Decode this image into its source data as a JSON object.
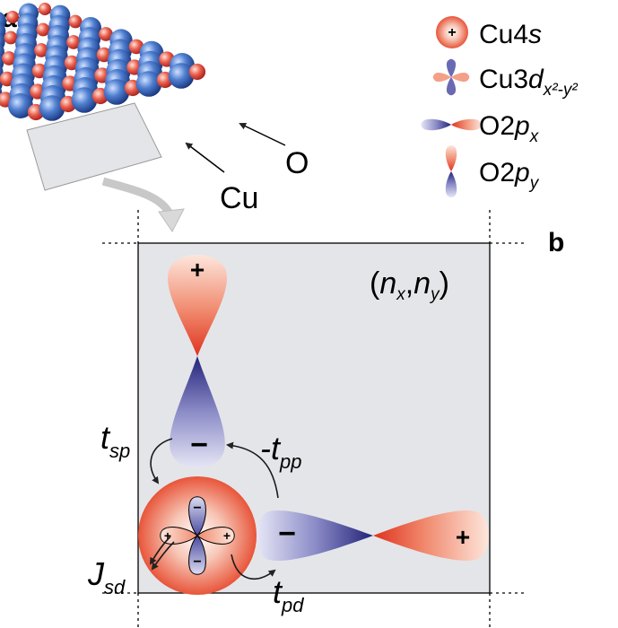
{
  "panels": {
    "a": "a",
    "b": "b"
  },
  "lattice_labels": {
    "cu": "Cu",
    "o": "O"
  },
  "legend": [
    {
      "text": "Cu4",
      "ital": "s",
      "sub": ""
    },
    {
      "text": "Cu3",
      "ital": "d",
      "sub": "x²-y²"
    },
    {
      "text": "O2",
      "ital": "p",
      "sub": "x"
    },
    {
      "text": "O2",
      "ital": "p",
      "sub": "y"
    }
  ],
  "cell_label": {
    "open": "(",
    "nx": "n",
    "nx_sub": "x",
    "comma": ",",
    "ny": "n",
    "ny_sub": "y",
    "close": ")"
  },
  "hoppings": {
    "tsp": {
      "main": "t",
      "sub": "sp"
    },
    "tpp": {
      "main": "-t",
      "sub": "pp"
    },
    "tpd": {
      "main": "t",
      "sub": "pd"
    },
    "jsd": {
      "main": "J",
      "sub": "sd"
    }
  },
  "signs": {
    "plus": "+",
    "minus": "−"
  },
  "colors": {
    "red": "#e8553a",
    "blue": "#3a3d9a",
    "cell": "#e4e5e9"
  }
}
